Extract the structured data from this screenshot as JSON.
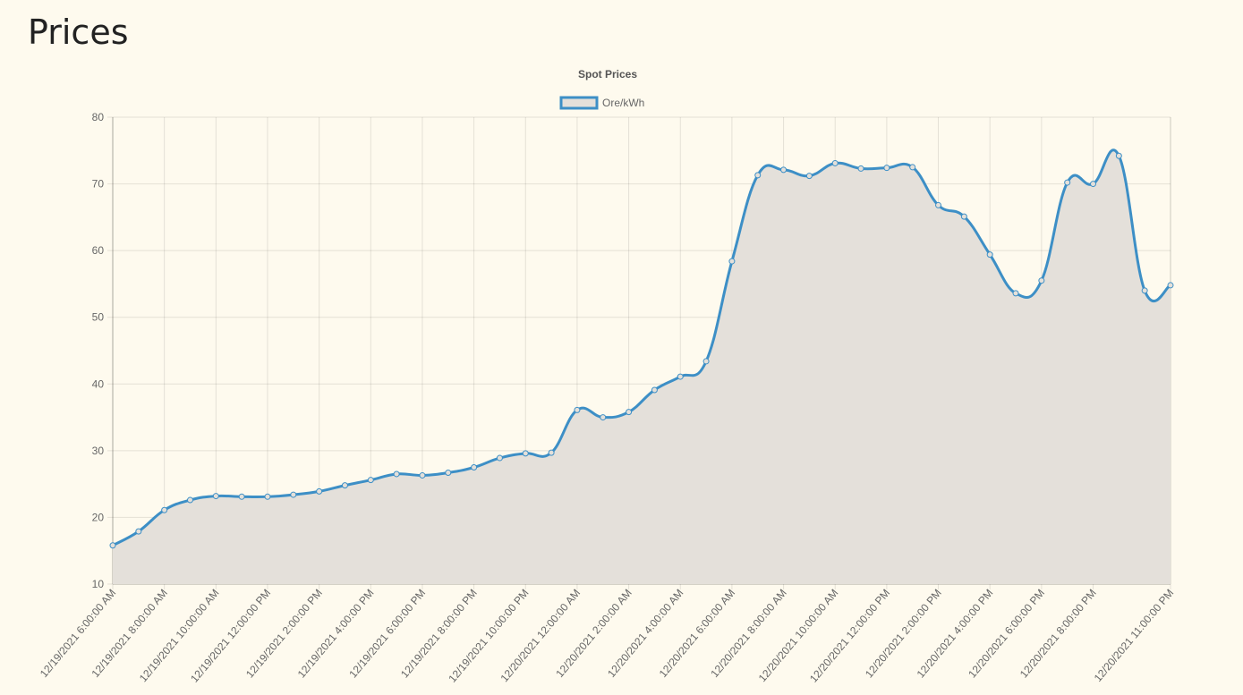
{
  "page": {
    "title": "Prices"
  },
  "chart_data": {
    "type": "line",
    "title": "Spot Prices",
    "legend_position": "top",
    "grid": true,
    "filled": true,
    "smooth": true,
    "ylim": [
      10,
      80
    ],
    "y_ticks": [
      10,
      20,
      30,
      40,
      50,
      60,
      70,
      80
    ],
    "x_tick_labels": [
      "12/19/2021 6:00:00 AM",
      "12/19/2021 8:00:00 AM",
      "12/19/2021 10:00:00 AM",
      "12/19/2021 12:00:00 PM",
      "12/19/2021 2:00:00 PM",
      "12/19/2021 4:00:00 PM",
      "12/19/2021 6:00:00 PM",
      "12/19/2021 8:00:00 PM",
      "12/19/2021 10:00:00 PM",
      "12/20/2021 12:00:00 AM",
      "12/20/2021 2:00:00 AM",
      "12/20/2021 4:00:00 AM",
      "12/20/2021 6:00:00 AM",
      "12/20/2021 8:00:00 AM",
      "12/20/2021 10:00:00 AM",
      "12/20/2021 12:00:00 PM",
      "12/20/2021 2:00:00 PM",
      "12/20/2021 4:00:00 PM",
      "12/20/2021 6:00:00 PM",
      "12/20/2021 8:00:00 PM",
      "12/20/2021 11:00:00 PM"
    ],
    "x_tick_positions": [
      0,
      2,
      4,
      6,
      8,
      10,
      12,
      14,
      16,
      18,
      20,
      22,
      24,
      26,
      28,
      30,
      32,
      34,
      36,
      38,
      41
    ],
    "series": [
      {
        "name": "Ore/kWh",
        "color": "#3d8fc6",
        "fill": "#e4e0da",
        "values": [
          15.8,
          17.9,
          21.1,
          22.6,
          23.2,
          23.1,
          23.1,
          23.4,
          23.9,
          24.8,
          25.6,
          26.5,
          26.3,
          26.7,
          27.5,
          28.9,
          29.6,
          29.7,
          36.1,
          35.0,
          35.8,
          39.1,
          41.1,
          43.4,
          58.4,
          71.3,
          72.1,
          71.2,
          73.1,
          72.3,
          72.4,
          72.5,
          66.8,
          65.1,
          59.4,
          53.6,
          55.5,
          70.2,
          70.0,
          74.2,
          54.0,
          54.8
        ]
      }
    ]
  }
}
